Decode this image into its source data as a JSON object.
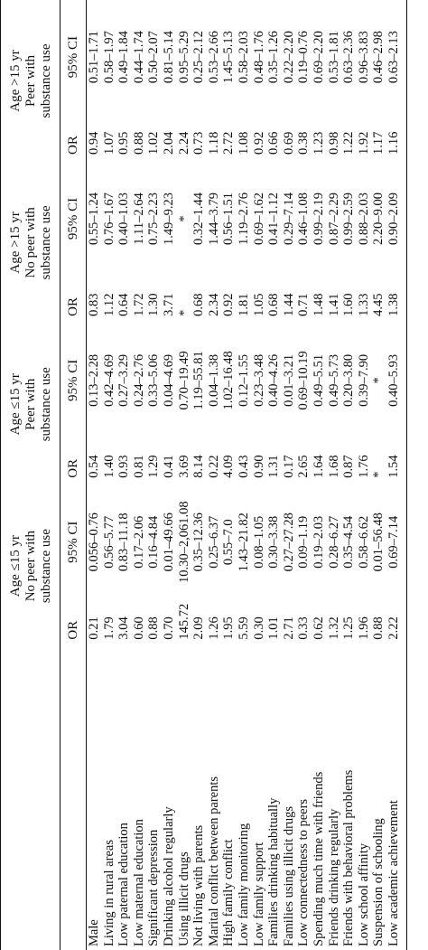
{
  "groups": [
    {
      "line1": "Age ≤15 yr",
      "line2": "No peer with",
      "line3": "substance use"
    },
    {
      "line1": "Age ≤15 yr",
      "line2": "Peer with",
      "line3": "substance use"
    },
    {
      "line1": "Age >15 yr",
      "line2": "No peer with",
      "line3": "substance use"
    },
    {
      "line1": "Age >15 yr",
      "line2": "Peer with",
      "line3": "substance use"
    }
  ],
  "col_or": "OR",
  "col_ci": "95% CI",
  "rows": [
    {
      "label": "Male",
      "v": [
        "0.21",
        "0.056–0.76",
        "0.54",
        "0.13–2.28",
        "0.83",
        "0.55–1.24",
        "0.94",
        "0.51–1.71"
      ]
    },
    {
      "label": "Living in rural areas",
      "v": [
        "1.79",
        "0.56–5.77",
        "1.40",
        "0.42–4.69",
        "1.12",
        "0.76–1.67",
        "1.07",
        "0.58–1.97"
      ]
    },
    {
      "label": "Low paternal education",
      "v": [
        "3.04",
        "0.83–11.18",
        "0.93",
        "0.27–3.29",
        "0.64",
        "0.40–1.03",
        "0.95",
        "0.49–1.84"
      ]
    },
    {
      "label": "Low maternal education",
      "v": [
        "0.60",
        "0.17–2.06",
        "0.81",
        "0.24–2.76",
        "1.72",
        "1.11–2.64",
        "0.88",
        "0.44–1.74"
      ]
    },
    {
      "label": "Significant depression",
      "v": [
        "0.88",
        "0.16–4.84",
        "1.29",
        "0.33–5.06",
        "1.30",
        "0.75–2.23",
        "1.02",
        "0.50–2.07"
      ]
    },
    {
      "label": "Drinking alcohol regularly",
      "v": [
        "0.70",
        "0.01–49.66",
        "0.41",
        "0.04–4.69",
        "3.71",
        "1.49–9.23",
        "2.04",
        "0.81–5.14"
      ]
    },
    {
      "label": "Using illicit drugs",
      "v": [
        "145.72",
        "10.30–2,061.08",
        "3.69",
        "0.70–19.49",
        "*",
        "*",
        "2.24",
        "0.95–5.29"
      ]
    },
    {
      "label": "Not living with parents",
      "v": [
        "2.09",
        "0.35–12.36",
        "8.14",
        "1.19–55.81",
        "0.68",
        "0.32–1.44",
        "0.73",
        "0.25–2.12"
      ]
    },
    {
      "label": "Marital conflict between parents",
      "v": [
        "1.26",
        "0.25–6.37",
        "0.22",
        "0.04–1.38",
        "2.34",
        "1.44–3.79",
        "1.18",
        "0.53–2.66"
      ]
    },
    {
      "label": "High family conflict",
      "v": [
        "1.95",
        "0.55–7.0",
        "4.09",
        "1.02–16.48",
        "0.92",
        "0.56–1.51",
        "2.72",
        "1.45–5.13"
      ]
    },
    {
      "label": "Low family monitoring",
      "v": [
        "5.59",
        "1.43–21.82",
        "0.43",
        "0.12–1.55",
        "1.81",
        "1.19–2.76",
        "1.08",
        "0.58–2.03"
      ]
    },
    {
      "label": "Low family support",
      "v": [
        "0.30",
        "0.08–1.05",
        "0.90",
        "0.23–3.48",
        "1.05",
        "0.69–1.62",
        "0.92",
        "0.48–1.76"
      ]
    },
    {
      "label": "Families drinking habitually",
      "v": [
        "1.01",
        "0.30–3.38",
        "1.31",
        "0.40–4.26",
        "0.68",
        "0.41–1.12",
        "0.66",
        "0.35–1.26"
      ]
    },
    {
      "label": "Families using illicit drugs",
      "v": [
        "2.71",
        "0.27–27.28",
        "0.17",
        "0.01–3.21",
        "1.44",
        "0.29–7.14",
        "0.69",
        "0.22–2.20"
      ]
    },
    {
      "label": "Low connectedness to peers",
      "v": [
        "0.33",
        "0.09–1.19",
        "2.65",
        "0.69–10.19",
        "0.71",
        "0.46–1.08",
        "0.38",
        "0.19–0.76"
      ]
    },
    {
      "label": "Spending much time with friends",
      "v": [
        "0.62",
        "0.19–2.03",
        "1.64",
        "0.49–5.51",
        "1.48",
        "0.99–2.19",
        "1.23",
        "0.69–2.20"
      ]
    },
    {
      "label": "Friends drinking regularly",
      "v": [
        "1.32",
        "0.28–6.27",
        "1.68",
        "0.49–5.73",
        "1.41",
        "0.87–2.29",
        "0.98",
        "0.53–1.81"
      ]
    },
    {
      "label": "Friends with behavioral problems",
      "v": [
        "1.25",
        "0.35–4.54",
        "0.87",
        "0.20–3.80",
        "1.60",
        "0.99–2.59",
        "1.22",
        "0.63–2.36"
      ]
    },
    {
      "label": "Low school affinity",
      "v": [
        "1.96",
        "0.58–6.62",
        "1.76",
        "0.39–7.90",
        "1.33",
        "0.88–2.03",
        "1.92",
        "0.96–3.83"
      ]
    },
    {
      "label": "Suspension of schooling",
      "v": [
        "0.88",
        "0.01–56.48",
        "*",
        "*",
        "4.45",
        "2.20–9.00",
        "1.17",
        "0.46–2.98"
      ]
    },
    {
      "label": "Low academic achievement",
      "v": [
        "2.22",
        "0.69–7.14",
        "1.54",
        "0.40–5.93",
        "1.38",
        "0.90–2.09",
        "1.16",
        "0.63–2.13"
      ]
    }
  ]
}
